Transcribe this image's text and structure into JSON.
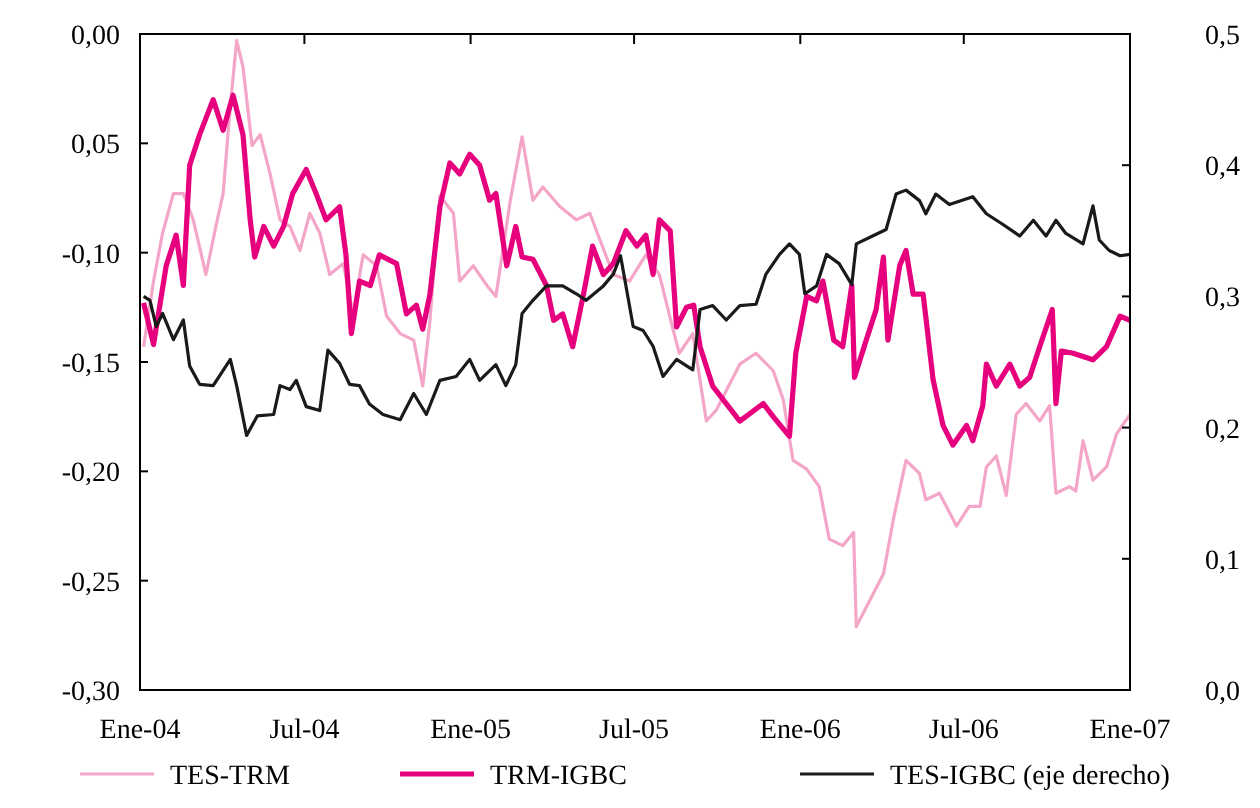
{
  "chart_data": {
    "type": "line",
    "legend": "bottom",
    "grid": false,
    "line_style": "solid",
    "marker": "none",
    "xlim": [
      "2004-01-01",
      "2007-01-01"
    ],
    "xticks": [
      {
        "value": "2004-01-01",
        "label": "Ene-04"
      },
      {
        "value": "2004-07-01",
        "label": "Jul-04"
      },
      {
        "value": "2005-01-01",
        "label": "Ene-05"
      },
      {
        "value": "2005-07-01",
        "label": "Jul-05"
      },
      {
        "value": "2006-01-01",
        "label": "Ene-06"
      },
      {
        "value": "2006-07-01",
        "label": "Jul-06"
      },
      {
        "value": "2007-01-01",
        "label": "Ene-07"
      }
    ],
    "ylim": [
      -0.3,
      0
    ],
    "yticks": [
      {
        "value": 0,
        "label": "0,00"
      },
      {
        "value": -0.05,
        "label": "0,05"
      },
      {
        "value": -0.1,
        "label": "-0,10"
      },
      {
        "value": -0.15,
        "label": "-0,15"
      },
      {
        "value": -0.2,
        "label": "-0,20"
      },
      {
        "value": -0.25,
        "label": "-0,25"
      },
      {
        "value": -0.3,
        "label": "-0,30"
      }
    ],
    "y2lim": [
      0,
      0.5
    ],
    "y2ticks": [
      {
        "value": 0,
        "label": "0,0"
      },
      {
        "value": 0.1,
        "label": "0,1"
      },
      {
        "value": 0.2,
        "label": "0,2"
      },
      {
        "value": 0.3,
        "label": "0,3"
      },
      {
        "value": 0.4,
        "label": "0,4"
      },
      {
        "value": 0.5,
        "label": "0,5"
      }
    ],
    "series": [
      {
        "name": "TES-TRM",
        "color": "#f4a6c8",
        "x": [
          "2004-01-05",
          "2004-01-16",
          "2004-01-26",
          "2004-02-07",
          "2004-02-18",
          "2004-02-29",
          "2004-03-14",
          "2004-03-25",
          "2004-04-02",
          "2004-04-10",
          "2004-04-17",
          "2004-04-24",
          "2004-05-04",
          "2004-05-13",
          "2004-05-24",
          "2004-06-04",
          "2004-06-15",
          "2004-06-26",
          "2004-07-07",
          "2004-07-18",
          "2004-07-29",
          "2004-08-13",
          "2004-08-24",
          "2004-09-04",
          "2004-09-19",
          "2004-09-30",
          "2004-10-15",
          "2004-10-30",
          "2004-11-09",
          "2004-11-17",
          "2004-11-28",
          "2004-12-13",
          "2004-12-20",
          "2005-01-04",
          "2005-01-19",
          "2005-01-29",
          "2005-02-14",
          "2005-02-27",
          "2005-03-11",
          "2005-03-22",
          "2005-04-10",
          "2005-04-28",
          "2005-05-13",
          "2005-05-24",
          "2005-06-08",
          "2005-06-26",
          "2005-07-14",
          "2005-07-29",
          "2005-08-13",
          "2005-08-20",
          "2005-09-04",
          "2005-09-19",
          "2005-09-30",
          "2005-10-26",
          "2005-11-13",
          "2005-12-02",
          "2005-12-13",
          "2005-12-24",
          "2006-01-08",
          "2006-01-22",
          "2006-02-02",
          "2006-02-17",
          "2006-03-01",
          "2006-03-04",
          "2006-03-19",
          "2006-04-03",
          "2006-04-14",
          "2006-04-28",
          "2006-05-13",
          "2006-05-20",
          "2006-06-04",
          "2006-06-23",
          "2006-07-07",
          "2006-07-19",
          "2006-07-26",
          "2006-08-06",
          "2006-08-17",
          "2006-08-28",
          "2006-09-08",
          "2006-09-23",
          "2006-10-04",
          "2006-10-11",
          "2006-10-26",
          "2006-11-02",
          "2006-11-10",
          "2006-11-21",
          "2006-12-06",
          "2006-12-17",
          "2007-01-01"
        ],
        "values": [
          -0.143,
          -0.113,
          -0.091,
          -0.073,
          -0.073,
          -0.085,
          -0.11,
          -0.088,
          -0.073,
          -0.033,
          -0.003,
          -0.015,
          -0.051,
          -0.046,
          -0.064,
          -0.085,
          -0.088,
          -0.099,
          -0.082,
          -0.091,
          -0.11,
          -0.105,
          -0.128,
          -0.101,
          -0.106,
          -0.129,
          -0.137,
          -0.14,
          -0.161,
          -0.131,
          -0.074,
          -0.082,
          -0.113,
          -0.106,
          -0.115,
          -0.12,
          -0.076,
          -0.047,
          -0.076,
          -0.07,
          -0.079,
          -0.085,
          -0.082,
          -0.094,
          -0.11,
          -0.113,
          -0.101,
          -0.11,
          -0.135,
          -0.146,
          -0.137,
          -0.177,
          -0.172,
          -0.151,
          -0.146,
          -0.154,
          -0.167,
          -0.195,
          -0.199,
          -0.207,
          -0.231,
          -0.234,
          -0.228,
          -0.271,
          -0.259,
          -0.247,
          -0.222,
          -0.195,
          -0.201,
          -0.213,
          -0.21,
          -0.225,
          -0.216,
          -0.216,
          -0.198,
          -0.193,
          -0.211,
          -0.174,
          -0.169,
          -0.177,
          -0.17,
          -0.21,
          -0.207,
          -0.209,
          -0.186,
          -0.204,
          -0.198,
          -0.183,
          -0.174
        ]
      },
      {
        "name": "TRM-IGBC",
        "color": "#e6007e",
        "x": [
          "2004-01-05",
          "2004-01-16",
          "2004-01-30",
          "2004-02-10",
          "2004-02-18",
          "2004-02-25",
          "2004-03-07",
          "2004-03-22",
          "2004-04-02",
          "2004-04-13",
          "2004-04-24",
          "2004-05-02",
          "2004-05-07",
          "2004-05-17",
          "2004-05-28",
          "2004-06-08",
          "2004-06-18",
          "2004-07-03",
          "2004-07-14",
          "2004-07-25",
          "2004-08-09",
          "2004-08-16",
          "2004-08-22",
          "2004-08-31",
          "2004-09-12",
          "2004-09-22",
          "2004-10-11",
          "2004-10-22",
          "2004-11-02",
          "2004-11-09",
          "2004-11-17",
          "2004-11-28",
          "2004-12-09",
          "2004-12-20",
          "2004-12-31",
          "2005-01-11",
          "2005-01-22",
          "2005-01-29",
          "2005-02-10",
          "2005-02-20",
          "2005-02-27",
          "2005-03-11",
          "2005-03-26",
          "2005-04-03",
          "2005-04-13",
          "2005-04-24",
          "2005-05-06",
          "2005-05-16",
          "2005-05-28",
          "2005-06-08",
          "2005-06-22",
          "2005-07-04",
          "2005-07-14",
          "2005-07-22",
          "2005-07-29",
          "2005-08-10",
          "2005-08-17",
          "2005-08-28",
          "2005-09-05",
          "2005-09-12",
          "2005-09-26",
          "2005-10-26",
          "2005-11-21",
          "2005-12-02",
          "2005-12-20",
          "2005-12-27",
          "2006-01-08",
          "2006-01-19",
          "2006-01-26",
          "2006-02-07",
          "2006-02-17",
          "2006-02-27",
          "2006-03-02",
          "2006-03-15",
          "2006-03-26",
          "2006-04-03",
          "2006-04-08",
          "2006-04-21",
          "2006-04-28",
          "2006-05-06",
          "2006-05-17",
          "2006-05-28",
          "2006-06-08",
          "2006-06-19",
          "2006-07-04",
          "2006-07-11",
          "2006-07-22",
          "2006-07-26",
          "2006-08-06",
          "2006-08-21",
          "2006-09-01",
          "2006-09-12",
          "2006-09-23",
          "2006-10-07",
          "2006-10-11",
          "2006-10-17",
          "2006-10-30",
          "2006-11-21",
          "2006-12-06",
          "2006-12-21",
          "2007-01-01"
        ],
        "values": [
          -0.123,
          -0.142,
          -0.106,
          -0.092,
          -0.115,
          -0.06,
          -0.046,
          -0.03,
          -0.044,
          -0.028,
          -0.046,
          -0.085,
          -0.102,
          -0.088,
          -0.097,
          -0.088,
          -0.073,
          -0.062,
          -0.073,
          -0.085,
          -0.079,
          -0.101,
          -0.137,
          -0.113,
          -0.115,
          -0.101,
          -0.105,
          -0.128,
          -0.124,
          -0.135,
          -0.119,
          -0.079,
          -0.059,
          -0.064,
          -0.055,
          -0.06,
          -0.076,
          -0.073,
          -0.106,
          -0.088,
          -0.102,
          -0.103,
          -0.115,
          -0.131,
          -0.128,
          -0.143,
          -0.119,
          -0.097,
          -0.11,
          -0.105,
          -0.09,
          -0.097,
          -0.092,
          -0.11,
          -0.085,
          -0.09,
          -0.134,
          -0.125,
          -0.124,
          -0.143,
          -0.161,
          -0.177,
          -0.169,
          -0.175,
          -0.184,
          -0.146,
          -0.12,
          -0.122,
          -0.113,
          -0.14,
          -0.143,
          -0.115,
          -0.157,
          -0.14,
          -0.126,
          -0.102,
          -0.14,
          -0.106,
          -0.099,
          -0.119,
          -0.119,
          -0.158,
          -0.179,
          -0.188,
          -0.179,
          -0.186,
          -0.17,
          -0.151,
          -0.161,
          -0.151,
          -0.161,
          -0.157,
          -0.143,
          -0.126,
          -0.169,
          -0.145,
          -0.146,
          -0.149,
          -0.143,
          -0.129,
          -0.131
        ]
      },
      {
        "name": "TES-IGBC (eje derecho)",
        "color": "#1a1a1a",
        "axis": "y2",
        "x": [
          "2004-01-05",
          "2004-01-12",
          "2004-01-19",
          "2004-01-26",
          "2004-02-07",
          "2004-02-18",
          "2004-02-25",
          "2004-03-07",
          "2004-03-22",
          "2004-04-10",
          "2004-04-17",
          "2004-04-28",
          "2004-05-10",
          "2004-05-28",
          "2004-06-04",
          "2004-06-15",
          "2004-06-22",
          "2004-07-03",
          "2004-07-18",
          "2004-07-27",
          "2004-08-09",
          "2004-08-20",
          "2004-08-31",
          "2004-09-11",
          "2004-09-26",
          "2004-10-15",
          "2004-10-30",
          "2004-11-13",
          "2004-11-28",
          "2004-12-16",
          "2004-12-31",
          "2005-01-11",
          "2005-01-29",
          "2005-02-09",
          "2005-02-20",
          "2005-02-27",
          "2005-03-11",
          "2005-03-26",
          "2005-04-13",
          "2005-04-28",
          "2005-05-09",
          "2005-05-28",
          "2005-06-08",
          "2005-06-16",
          "2005-06-30",
          "2005-07-11",
          "2005-07-22",
          "2005-08-02",
          "2005-08-17",
          "2005-09-04",
          "2005-09-12",
          "2005-09-26",
          "2005-10-11",
          "2005-10-26",
          "2005-11-13",
          "2005-11-24",
          "2005-12-09",
          "2005-12-20",
          "2005-12-31",
          "2006-01-06",
          "2006-01-19",
          "2006-01-30",
          "2006-02-13",
          "2006-02-27",
          "2006-03-04",
          "2006-03-22",
          "2006-04-06",
          "2006-04-17",
          "2006-04-28",
          "2006-05-13",
          "2006-05-20",
          "2006-05-31",
          "2006-06-15",
          "2006-07-11",
          "2006-07-26",
          "2006-08-13",
          "2006-09-01",
          "2006-09-16",
          "2006-09-30",
          "2006-10-11",
          "2006-10-22",
          "2006-11-10",
          "2006-11-21",
          "2006-11-28",
          "2006-12-09",
          "2006-12-21",
          "2007-01-01"
        ],
        "values": [
          0.3,
          0.297,
          0.277,
          0.287,
          0.267,
          0.282,
          0.247,
          0.233,
          0.232,
          0.252,
          0.232,
          0.194,
          0.209,
          0.21,
          0.232,
          0.229,
          0.236,
          0.216,
          0.213,
          0.259,
          0.249,
          0.233,
          0.232,
          0.218,
          0.21,
          0.206,
          0.226,
          0.21,
          0.236,
          0.239,
          0.252,
          0.236,
          0.248,
          0.232,
          0.248,
          0.287,
          0.297,
          0.308,
          0.308,
          0.302,
          0.297,
          0.308,
          0.317,
          0.331,
          0.277,
          0.274,
          0.262,
          0.239,
          0.252,
          0.244,
          0.29,
          0.293,
          0.282,
          0.293,
          0.294,
          0.317,
          0.332,
          0.34,
          0.332,
          0.302,
          0.308,
          0.332,
          0.325,
          0.309,
          0.34,
          0.346,
          0.351,
          0.378,
          0.381,
          0.373,
          0.363,
          0.378,
          0.37,
          0.376,
          0.363,
          0.355,
          0.346,
          0.358,
          0.346,
          0.358,
          0.348,
          0.34,
          0.369,
          0.343,
          0.335,
          0.331,
          0.332
        ]
      }
    ]
  }
}
